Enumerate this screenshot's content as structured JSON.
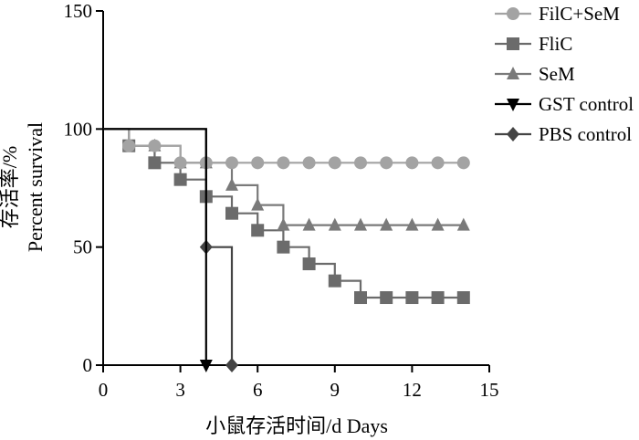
{
  "chart_data": {
    "type": "line",
    "step": true,
    "xlabel": "小鼠存活时间/d Days",
    "ylabel_cn": "存活率/%",
    "ylabel_en": "Percent survival",
    "xlim": [
      0,
      15
    ],
    "ylim": [
      0,
      150
    ],
    "xticks": [
      0,
      3,
      6,
      9,
      12,
      15
    ],
    "yticks": [
      0,
      50,
      100,
      150
    ],
    "grid": false,
    "legend_position": "top-right",
    "series": [
      {
        "name": "FilC+SeM",
        "color": "#a3a3a3",
        "marker": "circle",
        "x": [
          0,
          1,
          2,
          3,
          4,
          5,
          6,
          7,
          8,
          9,
          10,
          11,
          12,
          13,
          14
        ],
        "y": [
          100,
          92.9,
          92.9,
          85.7,
          85.7,
          85.7,
          85.7,
          85.7,
          85.7,
          85.7,
          85.7,
          85.7,
          85.7,
          85.7,
          85.7
        ]
      },
      {
        "name": "FliC",
        "color": "#6b6b6b",
        "marker": "square",
        "x": [
          0,
          1,
          2,
          3,
          4,
          5,
          6,
          7,
          8,
          9,
          10,
          11,
          12,
          13,
          14
        ],
        "y": [
          100,
          92.9,
          85.7,
          78.6,
          71.4,
          64.3,
          57.1,
          50,
          42.9,
          35.7,
          28.6,
          28.6,
          28.6,
          28.6,
          28.6
        ]
      },
      {
        "name": "SeM",
        "color": "#7a7a7a",
        "marker": "triangle-up",
        "x": [
          0,
          1,
          2,
          3,
          4,
          5,
          6,
          7,
          8,
          9,
          10,
          11,
          12,
          13,
          14
        ],
        "y": [
          100,
          92.9,
          92.9,
          85.7,
          85.7,
          76.2,
          67.8,
          59.3,
          59.3,
          59.3,
          59.3,
          59.3,
          59.3,
          59.3,
          59.3
        ]
      },
      {
        "name": "GST control",
        "color": "#000000",
        "marker": "triangle-down",
        "x": [
          0,
          4
        ],
        "y": [
          100,
          0
        ]
      },
      {
        "name": "PBS control",
        "color": "#444444",
        "marker": "diamond",
        "x": [
          0,
          4,
          5
        ],
        "y": [
          100,
          50,
          0
        ]
      }
    ]
  }
}
